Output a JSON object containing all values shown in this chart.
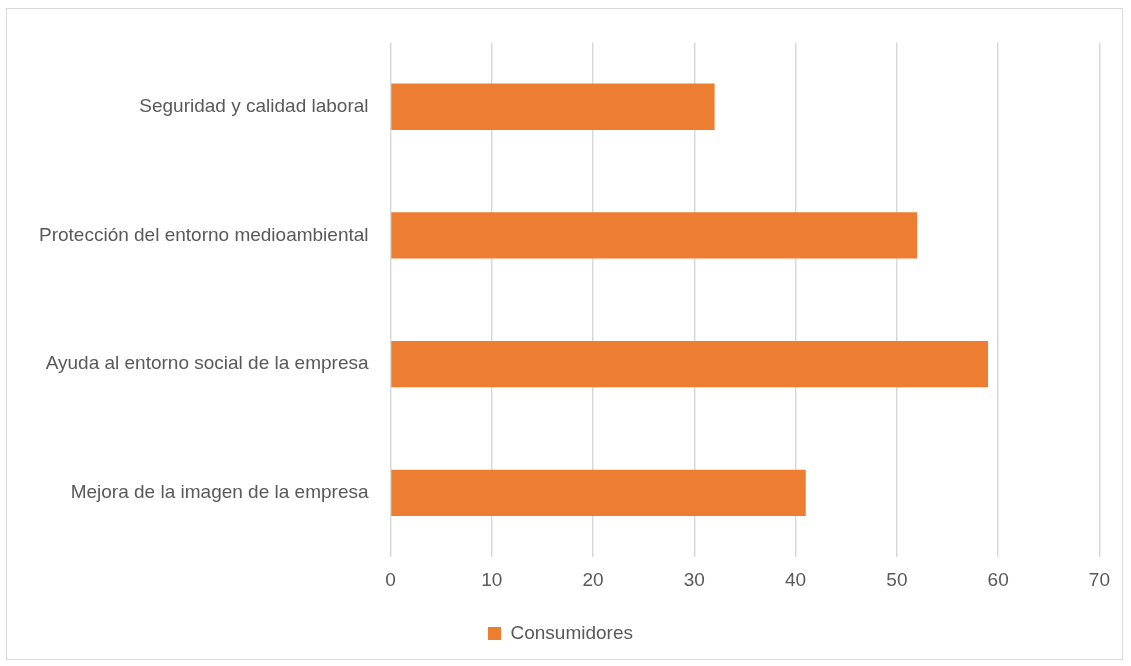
{
  "chart_data": {
    "type": "bar",
    "orientation": "horizontal",
    "categories": [
      "Seguridad y calidad laboral",
      "Protección del entorno medioambiental",
      "Ayuda al entorno social de la empresa",
      "Mejora de la imagen de la empresa"
    ],
    "series": [
      {
        "name": "Consumidores",
        "color": "#ed7d31",
        "values": [
          32,
          52,
          59,
          41
        ]
      }
    ],
    "xlim": [
      0,
      70
    ],
    "xticks": [
      0,
      10,
      20,
      30,
      40,
      50,
      60,
      70
    ],
    "grid": "x",
    "legend": "bottom"
  }
}
